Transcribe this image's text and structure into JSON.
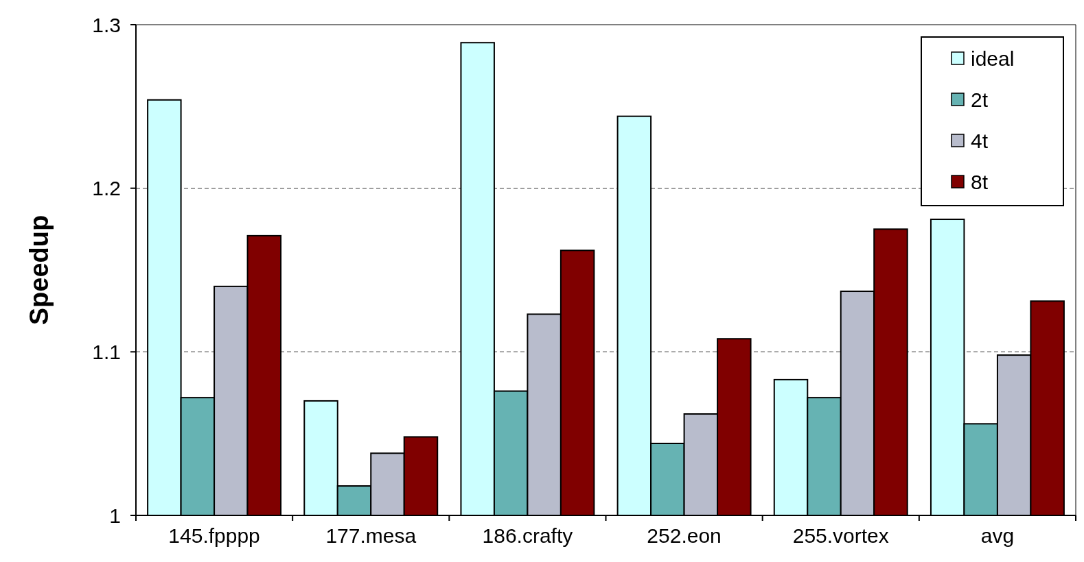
{
  "chart_data": {
    "type": "bar",
    "ylabel": "Speedup",
    "categories": [
      "145.fpppp",
      "177.mesa",
      "186.crafty",
      "252.eon",
      "255.vortex",
      "avg"
    ],
    "series": [
      {
        "name": "ideal",
        "color": "#ccffff",
        "values": [
          1.254,
          1.07,
          1.289,
          1.244,
          1.083,
          1.181
        ]
      },
      {
        "name": "2t",
        "color": "#66b3b3",
        "values": [
          1.072,
          1.018,
          1.076,
          1.044,
          1.072,
          1.056
        ]
      },
      {
        "name": "4t",
        "color": "#b8bccc",
        "values": [
          1.14,
          1.038,
          1.123,
          1.062,
          1.137,
          1.098
        ]
      },
      {
        "name": "8t",
        "color": "#800000",
        "values": [
          1.171,
          1.048,
          1.162,
          1.108,
          1.175,
          1.131
        ]
      }
    ],
    "ylim": [
      1,
      1.3
    ],
    "yticks": [
      1,
      1.1,
      1.2,
      1.3
    ],
    "grid": "y",
    "legend": "top right"
  }
}
